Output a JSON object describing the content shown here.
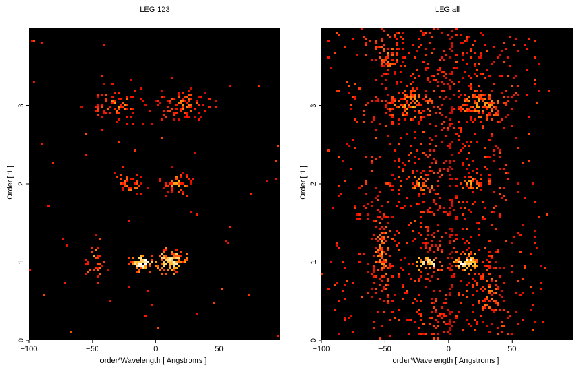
{
  "chart_data": [
    {
      "type": "heatmap",
      "title": "LEG 123",
      "xlabel": "order*Wavelength [ Angstroms ]",
      "ylabel": "Order [ 1 ]",
      "xlim": [
        -100,
        98
      ],
      "ylim": [
        0,
        4
      ],
      "xticks": [
        "−100",
        "−50",
        "0",
        "50"
      ],
      "xtick_values": [
        -100,
        -50,
        0,
        50
      ],
      "yticks": [
        "0",
        "1",
        "2",
        "3"
      ],
      "ytick_values": [
        0,
        1,
        2,
        3
      ],
      "colormap": "black-red-yellow-white",
      "background_color": "#000000",
      "grid": false,
      "clusters": [
        {
          "x": -48,
          "y": 1.0,
          "sx": 4,
          "sy": 0.14,
          "density": 0.45,
          "intensity": 0.7
        },
        {
          "x": -9,
          "y": 0.98,
          "sx": 6,
          "sy": 0.06,
          "density": 0.95,
          "intensity": 1.0
        },
        {
          "x": 12,
          "y": 1.0,
          "sx": 7,
          "sy": 0.09,
          "density": 0.85,
          "intensity": 0.95
        },
        {
          "x": -20,
          "y": 2.0,
          "sx": 7,
          "sy": 0.08,
          "density": 0.45,
          "intensity": 0.6
        },
        {
          "x": 18,
          "y": 2.0,
          "sx": 7,
          "sy": 0.08,
          "density": 0.45,
          "intensity": 0.6
        },
        {
          "x": -30,
          "y": 3.0,
          "sx": 12,
          "sy": 0.12,
          "density": 0.4,
          "intensity": 0.55
        },
        {
          "x": 22,
          "y": 3.0,
          "sx": 12,
          "sy": 0.12,
          "density": 0.4,
          "intensity": 0.55
        }
      ],
      "background_noise": 0.004
    },
    {
      "type": "heatmap",
      "title": "LEG all",
      "xlabel": "order*Wavelength [ Angstroms ]",
      "ylabel": "Order [ 1 ]",
      "xlim": [
        -100,
        98
      ],
      "ylim": [
        0,
        4
      ],
      "xticks": [
        "−100",
        "−50",
        "0",
        "50"
      ],
      "xtick_values": [
        -100,
        -50,
        0,
        50
      ],
      "yticks": [
        "0",
        "1",
        "2",
        "3"
      ],
      "ytick_values": [
        0,
        1,
        2,
        3
      ],
      "colormap": "black-red-yellow-white",
      "background_color": "#000000",
      "grid": false,
      "clusters": [
        {
          "x": -52,
          "y": 1.1,
          "sx": 6,
          "sy": 0.35,
          "density": 0.45,
          "intensity": 0.6
        },
        {
          "x": -15,
          "y": 0.98,
          "sx": 6,
          "sy": 0.06,
          "density": 0.95,
          "intensity": 1.0
        },
        {
          "x": 14,
          "y": 0.98,
          "sx": 7,
          "sy": 0.07,
          "density": 0.95,
          "intensity": 1.0
        },
        {
          "x": 30,
          "y": 0.6,
          "sx": 9,
          "sy": 0.25,
          "density": 0.35,
          "intensity": 0.55
        },
        {
          "x": -20,
          "y": 2.0,
          "sx": 8,
          "sy": 0.08,
          "density": 0.5,
          "intensity": 0.65
        },
        {
          "x": 20,
          "y": 2.0,
          "sx": 8,
          "sy": 0.08,
          "density": 0.5,
          "intensity": 0.65
        },
        {
          "x": -30,
          "y": 3.0,
          "sx": 14,
          "sy": 0.14,
          "density": 0.5,
          "intensity": 0.6
        },
        {
          "x": 25,
          "y": 3.0,
          "sx": 14,
          "sy": 0.14,
          "density": 0.5,
          "intensity": 0.6
        },
        {
          "x": -45,
          "y": 3.7,
          "sx": 10,
          "sy": 0.25,
          "density": 0.3,
          "intensity": 0.55
        }
      ],
      "background_noise": 0.12
    }
  ]
}
